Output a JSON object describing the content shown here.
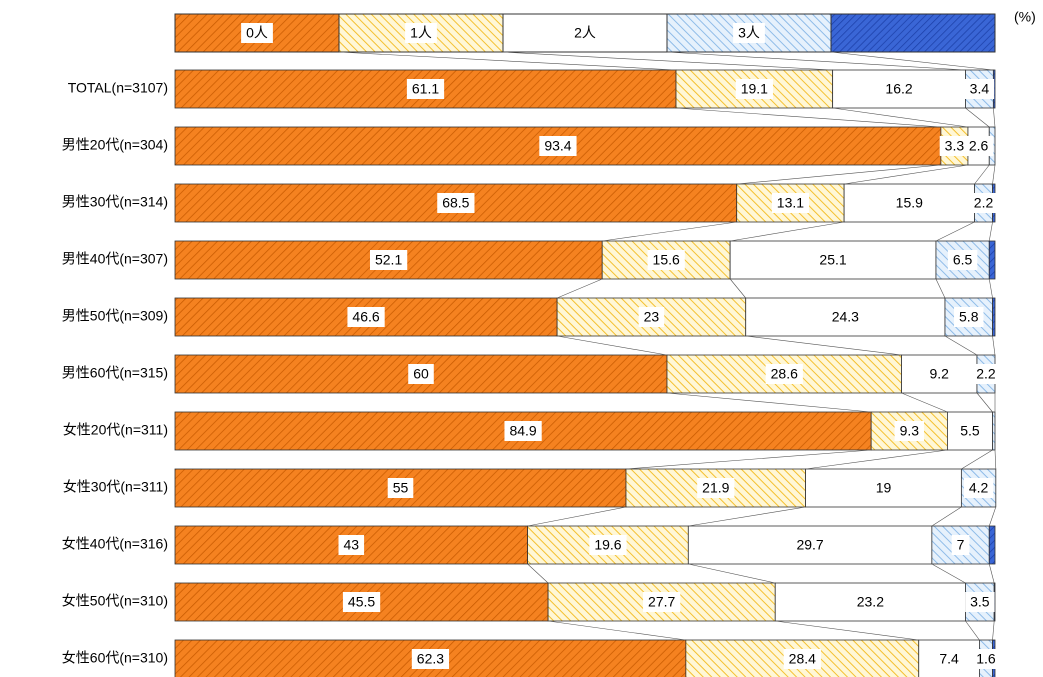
{
  "chart_data": {
    "type": "stacked-bar-100",
    "unit": "(%)",
    "categories": [
      "TOTAL(n=3107)",
      "男性20代(n=304)",
      "男性30代(n=314)",
      "男性40代(n=307)",
      "男性50代(n=309)",
      "男性60代(n=315)",
      "女性20代(n=311)",
      "女性30代(n=311)",
      "女性40代(n=316)",
      "女性50代(n=310)",
      "女性60代(n=310)"
    ],
    "xlim": [
      0,
      100
    ],
    "series": [
      {
        "name": "0人",
        "color": "#f58220",
        "values": [
          61.1,
          93.4,
          68.5,
          52.1,
          46.6,
          60.0,
          84.9,
          55.0,
          43.0,
          45.5,
          62.3
        ]
      },
      {
        "name": "1人",
        "color": "#fcd55a",
        "values": [
          19.1,
          3.3,
          13.1,
          15.6,
          23.0,
          28.6,
          9.3,
          21.9,
          19.6,
          27.7,
          28.4
        ]
      },
      {
        "name": "2人",
        "color": "#ffffff",
        "values": [
          16.2,
          2.6,
          15.9,
          25.1,
          24.3,
          9.2,
          5.5,
          19.0,
          29.7,
          23.2,
          7.4
        ]
      },
      {
        "name": "3人",
        "color": "#a9cdf2",
        "values": [
          3.4,
          0.7,
          2.2,
          6.5,
          5.8,
          2.2,
          0.3,
          4.2,
          7.0,
          3.5,
          1.6
        ]
      },
      {
        "name": null,
        "color": "#3a66d6",
        "values": [
          0.2,
          0.0,
          0.3,
          0.7,
          0.3,
          0.0,
          0.0,
          0.0,
          0.7,
          0.1,
          0.3
        ]
      }
    ]
  }
}
